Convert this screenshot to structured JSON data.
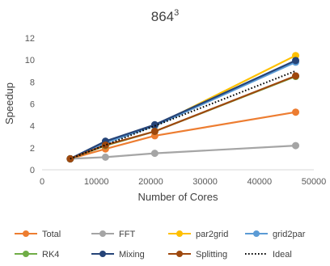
{
  "chart_data": {
    "type": "line",
    "title": "864",
    "title_superscript": "3",
    "xlabel": "Number of Cores",
    "ylabel": "Speedup",
    "xlim": [
      0,
      50000
    ],
    "ylim": [
      0,
      12
    ],
    "xticks": [
      "0",
      "10000",
      "20000",
      "30000",
      "40000",
      "50000"
    ],
    "yticks": [
      "0",
      "2",
      "4",
      "6",
      "8",
      "10",
      "12"
    ],
    "grid": false,
    "legend_position": "bottom",
    "x": [
      5184,
      11664,
      20736,
      46656
    ],
    "series": [
      {
        "name": "Total",
        "color": "#ED7D31",
        "style": "solid",
        "values": [
          1.0,
          1.9,
          3.1,
          5.25
        ]
      },
      {
        "name": "FFT",
        "color": "#A5A5A5",
        "style": "solid",
        "values": [
          1.0,
          1.15,
          1.5,
          2.2
        ]
      },
      {
        "name": "par2grid",
        "color": "#FFC000",
        "style": "solid",
        "values": [
          1.0,
          2.5,
          4.0,
          10.4
        ]
      },
      {
        "name": "grid2par",
        "color": "#5B9BD5",
        "style": "solid",
        "values": [
          1.0,
          2.45,
          4.0,
          9.8
        ]
      },
      {
        "name": "RK4",
        "color": "#70AD47",
        "style": "solid",
        "values": [
          1.0,
          2.2,
          3.5,
          8.5
        ]
      },
      {
        "name": "Mixing",
        "color": "#264478",
        "style": "solid",
        "values": [
          1.0,
          2.6,
          4.1,
          9.95
        ]
      },
      {
        "name": "Splitting",
        "color": "#9E480E",
        "style": "solid",
        "values": [
          1.0,
          2.25,
          3.5,
          8.55
        ]
      },
      {
        "name": "Ideal",
        "color": "#000000",
        "style": "dotted",
        "values": [
          1.0,
          2.25,
          4.0,
          9.0
        ]
      }
    ]
  }
}
